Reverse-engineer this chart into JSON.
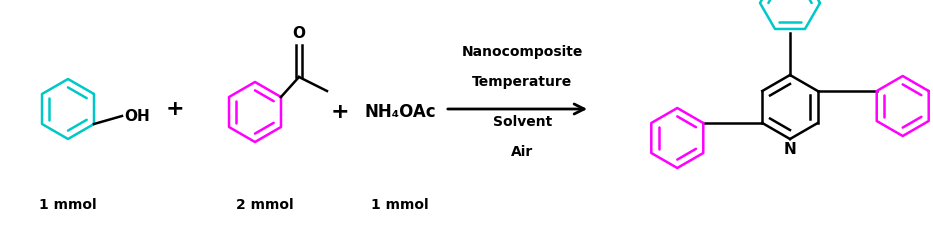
{
  "cyan_color": "#00C8C8",
  "magenta_color": "#FF00FF",
  "black_color": "#000000",
  "bg_color": "#FFFFFF",
  "arrow_label_lines": [
    "Nanocomposite",
    "Temperature",
    "Solvent",
    "Air"
  ],
  "labels": [
    "1 mmol",
    "2 mmol",
    "1 mmol"
  ],
  "nh4oac_text": "NH₄OAc",
  "oh_text": "OH",
  "o_text": "O",
  "n_text": "N",
  "fig_width": 9.33,
  "fig_height": 2.27,
  "dpi": 100
}
